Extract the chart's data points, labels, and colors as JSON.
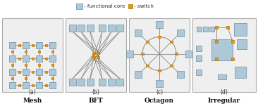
{
  "fig_width": 3.66,
  "fig_height": 1.51,
  "dpi": 100,
  "core_color": "#aec8d8",
  "core_edge": "#7a9aaa",
  "switch_color": "#e8960a",
  "switch_edge": "#b87000",
  "line_color": "#888888",
  "panel_bg": "#efefef",
  "panel_edge": "#aaaaaa",
  "legend_core_label": "- functional core",
  "legend_switch_label": "- switch",
  "labels": [
    "(a)",
    "(b)",
    "(c)",
    "(d)"
  ],
  "sublabels": [
    "Mesh",
    "BFT",
    "Octagon",
    "Irregular"
  ]
}
